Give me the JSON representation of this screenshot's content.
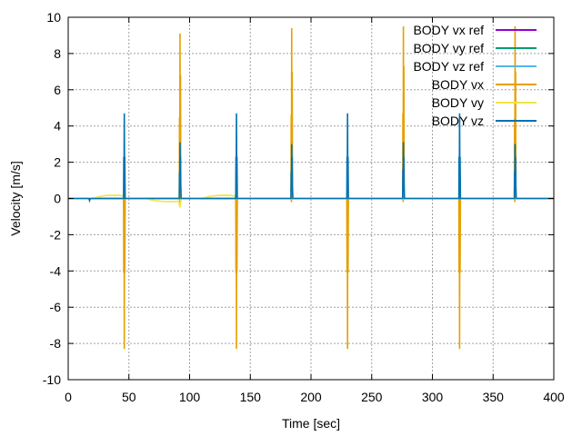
{
  "chart_data": {
    "type": "line",
    "title": "",
    "xlabel": "Time [sec]",
    "ylabel": "Velocity [m/s]",
    "xlim": [
      0,
      400
    ],
    "ylim": [
      -10,
      10
    ],
    "xticks": [
      0,
      50,
      100,
      150,
      200,
      250,
      300,
      350,
      400
    ],
    "yticks": [
      -10,
      -8,
      -6,
      -4,
      -2,
      0,
      2,
      4,
      6,
      8,
      10
    ],
    "grid": true,
    "legend_position": "top-right",
    "series": [
      {
        "name": "BODY vx ref",
        "color": "#9400d3",
        "points": [
          [
            0,
            0
          ],
          [
            400,
            0
          ]
        ]
      },
      {
        "name": "BODY vy ref",
        "color": "#009e73",
        "points": [
          [
            0,
            0
          ],
          [
            400,
            0
          ]
        ]
      },
      {
        "name": "BODY vz ref",
        "color": "#56b4e9",
        "points": [
          [
            0,
            0
          ],
          [
            400,
            0
          ]
        ]
      },
      {
        "name": "BODY vx",
        "color": "#e69f00",
        "points": [
          [
            0,
            0
          ],
          [
            45.6,
            0
          ],
          [
            45.8,
            -4.1
          ],
          [
            46.0,
            2.3
          ],
          [
            46.2,
            -8.3
          ],
          [
            46.4,
            2.2
          ],
          [
            46.6,
            -4.1
          ],
          [
            46.9,
            0
          ],
          [
            91.5,
            0
          ],
          [
            91.7,
            4.5
          ],
          [
            91.9,
            -0.3
          ],
          [
            92.1,
            9.1
          ],
          [
            92.3,
            1.2
          ],
          [
            92.5,
            6.8
          ],
          [
            92.7,
            0.8
          ],
          [
            93.0,
            0
          ],
          [
            138.0,
            0
          ],
          [
            138.2,
            -4.1
          ],
          [
            138.4,
            2.3
          ],
          [
            138.6,
            -8.3
          ],
          [
            138.8,
            2.2
          ],
          [
            139.0,
            -4.1
          ],
          [
            139.3,
            0
          ],
          [
            183.5,
            0
          ],
          [
            183.7,
            4.6
          ],
          [
            183.9,
            -0.2
          ],
          [
            184.1,
            9.4
          ],
          [
            184.3,
            1.3
          ],
          [
            184.5,
            7.0
          ],
          [
            184.7,
            0.8
          ],
          [
            185.0,
            0
          ],
          [
            229.5,
            0
          ],
          [
            229.7,
            -4.1
          ],
          [
            229.9,
            2.3
          ],
          [
            230.1,
            -8.3
          ],
          [
            230.3,
            2.2
          ],
          [
            230.5,
            -4.1
          ],
          [
            230.8,
            0
          ],
          [
            275.5,
            0
          ],
          [
            275.7,
            4.7
          ],
          [
            275.9,
            -0.2
          ],
          [
            276.1,
            9.5
          ],
          [
            276.3,
            1.4
          ],
          [
            276.5,
            7.3
          ],
          [
            276.7,
            0.8
          ],
          [
            277.0,
            0
          ],
          [
            321.8,
            0
          ],
          [
            322.0,
            -4.1
          ],
          [
            322.2,
            2.3
          ],
          [
            322.4,
            -8.3
          ],
          [
            322.6,
            2.2
          ],
          [
            322.8,
            -4.1
          ],
          [
            323.1,
            0
          ],
          [
            367.5,
            0
          ],
          [
            367.7,
            4.4
          ],
          [
            367.9,
            -0.2
          ],
          [
            368.1,
            9.5
          ],
          [
            368.3,
            1.2
          ],
          [
            368.5,
            7.0
          ],
          [
            368.7,
            0.8
          ],
          [
            369.0,
            0
          ],
          [
            400,
            0
          ]
        ]
      },
      {
        "name": "BODY vy",
        "color": "#f0e442",
        "points": [
          [
            0,
            0
          ],
          [
            17,
            0
          ],
          [
            22,
            0.04
          ],
          [
            27,
            0.12
          ],
          [
            32,
            0.17
          ],
          [
            40,
            0.18
          ],
          [
            45,
            0.15
          ],
          [
            46,
            0
          ],
          [
            50,
            0
          ],
          [
            62,
            0
          ],
          [
            66,
            -0.04
          ],
          [
            71,
            -0.12
          ],
          [
            78,
            -0.16
          ],
          [
            88,
            -0.17
          ],
          [
            91,
            -0.15
          ],
          [
            92,
            -0.5
          ],
          [
            93,
            0
          ],
          [
            100,
            0
          ],
          [
            108,
            0
          ],
          [
            112,
            0.04
          ],
          [
            117,
            0.12
          ],
          [
            124,
            0.17
          ],
          [
            132,
            0.18
          ],
          [
            137,
            0.15
          ],
          [
            138,
            0
          ],
          [
            142,
            0
          ],
          [
            400,
            0
          ]
        ]
      },
      {
        "name": "BODY vz",
        "color": "#0072b2",
        "points": [
          [
            0,
            0
          ],
          [
            17,
            0
          ],
          [
            17.6,
            -0.12
          ],
          [
            18.2,
            0
          ],
          [
            45.6,
            0
          ],
          [
            45.8,
            2.3
          ],
          [
            46.0,
            1.3
          ],
          [
            46.2,
            4.7
          ],
          [
            46.4,
            1.5
          ],
          [
            46.6,
            2.3
          ],
          [
            46.9,
            0
          ],
          [
            91.5,
            0
          ],
          [
            91.7,
            1.5
          ],
          [
            91.9,
            0.5
          ],
          [
            92.1,
            3.1
          ],
          [
            92.3,
            1.0
          ],
          [
            92.5,
            2.3
          ],
          [
            92.7,
            0.7
          ],
          [
            93.0,
            0
          ],
          [
            138.0,
            0
          ],
          [
            138.2,
            2.3
          ],
          [
            138.4,
            1.3
          ],
          [
            138.6,
            4.7
          ],
          [
            138.8,
            1.5
          ],
          [
            139.0,
            2.3
          ],
          [
            139.3,
            0
          ],
          [
            183.5,
            0
          ],
          [
            183.7,
            1.5
          ],
          [
            183.9,
            0.5
          ],
          [
            184.1,
            3.0
          ],
          [
            184.3,
            1.0
          ],
          [
            184.5,
            2.3
          ],
          [
            184.7,
            0.7
          ],
          [
            185.0,
            0
          ],
          [
            229.5,
            0
          ],
          [
            229.7,
            2.3
          ],
          [
            229.9,
            1.3
          ],
          [
            230.1,
            4.7
          ],
          [
            230.3,
            1.5
          ],
          [
            230.5,
            2.3
          ],
          [
            230.8,
            0
          ],
          [
            275.5,
            0
          ],
          [
            275.7,
            1.6
          ],
          [
            275.9,
            0.5
          ],
          [
            276.1,
            3.1
          ],
          [
            276.3,
            1.0
          ],
          [
            276.5,
            2.3
          ],
          [
            276.7,
            0.7
          ],
          [
            277.0,
            0
          ],
          [
            321.8,
            0
          ],
          [
            322.0,
            2.3
          ],
          [
            322.2,
            1.3
          ],
          [
            322.4,
            4.7
          ],
          [
            322.6,
            1.5
          ],
          [
            322.8,
            2.3
          ],
          [
            323.1,
            0
          ],
          [
            367.5,
            0
          ],
          [
            367.7,
            1.5
          ],
          [
            367.9,
            0.5
          ],
          [
            368.1,
            3.0
          ],
          [
            368.3,
            1.0
          ],
          [
            368.5,
            2.3
          ],
          [
            368.7,
            0.7
          ],
          [
            369.0,
            0
          ],
          [
            400,
            0
          ]
        ]
      }
    ]
  }
}
